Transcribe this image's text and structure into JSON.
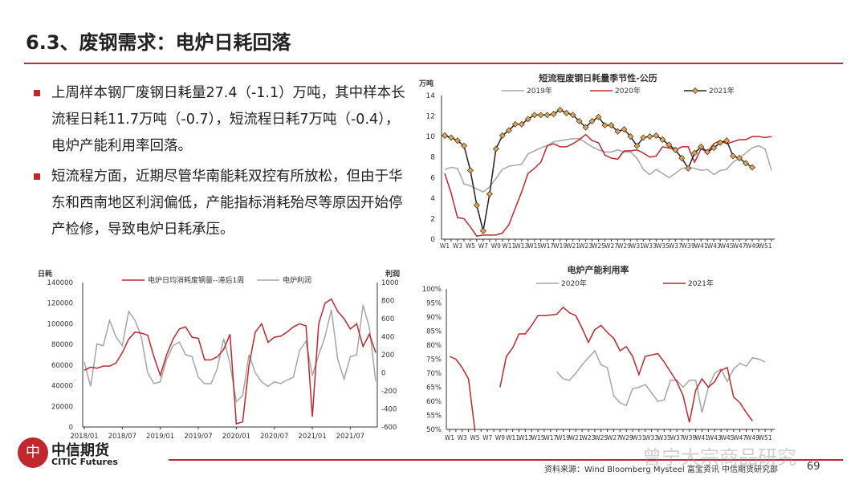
{
  "header": {
    "title": "6.3、废钢需求：电炉日耗回落"
  },
  "bullets": [
    "上周样本钢厂废钢日耗量27.4（-1.1）万吨，其中样本长流程日耗11.7万吨（-0.7），短流程日耗7万吨（-0.4），电炉产能利用率回落。",
    "短流程方面，近期尽管华南能耗双控有所放松，但由于华东和西南地区利润偏低，产能指标消耗殆尽等原因开始停产检修，导致电炉日耗承压。"
  ],
  "footer": {
    "logo_cn": "中信期货",
    "logo_en": "CITIC Futures",
    "source": "资料来源：Wind Bloomberg Mysteel 富宝资讯 中信期货研究部",
    "page": "69",
    "watermark": "曾宁大宗商品研究"
  },
  "colors": {
    "accent": "#c0282d",
    "gray": "#a6a6a6",
    "dark": "#222222",
    "marker": "#e3a14a"
  },
  "chart_data": [
    {
      "type": "line",
      "title": "短流程废钢日耗量季节性-公历",
      "ylabel": "万吨",
      "ylim": [
        0,
        14
      ],
      "yticks": [
        0,
        2,
        4,
        6,
        8,
        10,
        12,
        14
      ],
      "xticks": [
        "W1",
        "W3",
        "W5",
        "W7",
        "W9",
        "W11",
        "W13",
        "W15",
        "W17",
        "W19",
        "W21",
        "W23",
        "W25",
        "W27",
        "W29",
        "W31",
        "W33",
        "W35",
        "W37",
        "W39",
        "W41",
        "W43",
        "W45",
        "W47",
        "W49",
        "W51"
      ],
      "legend": "top",
      "series": [
        {
          "name": "2019年",
          "color": "#a6a6a6",
          "values": [
            6.8,
            7.0,
            6.9,
            5.4,
            5.2,
            4.9,
            4.6,
            5.1,
            5.9,
            6.8,
            7.1,
            7.2,
            7.3,
            8.3,
            8.6,
            8.9,
            9.1,
            9.5,
            9.6,
            9.7,
            9.8,
            9.8,
            9.4,
            9.0,
            8.7,
            8.5,
            8.5,
            8.7,
            8.5,
            8.5,
            7.9,
            6.8,
            6.3,
            6.8,
            6.4,
            6.0,
            6.4,
            6.9,
            7.0,
            6.9,
            6.7,
            6.8,
            6.3,
            6.7,
            6.8,
            7.5,
            7.9,
            8.4,
            8.9,
            9.1,
            8.8,
            6.7
          ]
        },
        {
          "name": "2020年",
          "color": "#c0282d",
          "values": [
            6.4,
            4.5,
            2.1,
            2.0,
            1.2,
            0.3,
            0.4,
            0.4,
            0.4,
            0.6,
            1.4,
            3.0,
            4.6,
            6.4,
            6.9,
            7.5,
            9.1,
            9.3,
            9.0,
            9.0,
            9.3,
            9.7,
            10.2,
            9.6,
            9.4,
            8.2,
            7.9,
            7.8,
            8.6,
            8.6,
            8.7,
            8.4,
            8.0,
            8.1,
            9.0,
            8.9,
            8.7,
            9.0,
            9.0,
            7.5,
            8.8,
            8.5,
            9.3,
            9.6,
            9.3,
            9.5,
            9.7,
            9.7,
            10.0,
            10.0,
            9.9,
            10.0
          ]
        },
        {
          "name": "2021年",
          "color": "#222222",
          "marker": true,
          "values": [
            10.1,
            9.9,
            9.6,
            9.1,
            6.7,
            3.3,
            0.8,
            4.4,
            8.8,
            10.1,
            10.6,
            11.2,
            11.2,
            11.7,
            12.1,
            12.1,
            12.1,
            12.2,
            12.6,
            12.3,
            12.1,
            11.5,
            10.9,
            11.5,
            11.9,
            11.1,
            11.1,
            10.5,
            10.7,
            10.0,
            9.1,
            9.9,
            10.0,
            10.1,
            9.7,
            9.2,
            8.7,
            7.9,
            6.9,
            8.4,
            9.0,
            8.5,
            8.9,
            9.4,
            9.6,
            8.1,
            7.9,
            7.4,
            7.0
          ]
        }
      ]
    },
    {
      "type": "line",
      "title": "",
      "ylabel": "日耗",
      "y2label": "利润",
      "ylim": [
        0,
        140000
      ],
      "yticks": [
        0,
        20000,
        40000,
        60000,
        80000,
        100000,
        120000,
        140000
      ],
      "y2lim": [
        -600,
        1000
      ],
      "y2ticks": [
        -600,
        -400,
        -200,
        0,
        200,
        400,
        600,
        800,
        1000
      ],
      "xticks": [
        "2018/01",
        "2018/07",
        "2019/01",
        "2019/07",
        "2020/01",
        "2020/07",
        "2021/01",
        "2021/07"
      ],
      "legend": "top",
      "x": [
        "2018-01",
        "2018-02",
        "2018-03",
        "2018-04",
        "2018-05",
        "2018-06",
        "2018-07",
        "2018-08",
        "2018-09",
        "2018-10",
        "2018-11",
        "2018-12",
        "2019-01",
        "2019-02",
        "2019-03",
        "2019-04",
        "2019-05",
        "2019-06",
        "2019-07",
        "2019-08",
        "2019-09",
        "2019-10",
        "2019-11",
        "2019-12",
        "2020-01",
        "2020-02",
        "2020-03",
        "2020-04",
        "2020-05",
        "2020-06",
        "2020-07",
        "2020-08",
        "2020-09",
        "2020-10",
        "2020-11",
        "2020-12",
        "2021-01",
        "2021-02",
        "2021-03",
        "2021-04",
        "2021-05",
        "2021-06",
        "2021-07",
        "2021-08",
        "2021-09",
        "2021-10",
        "2021-11"
      ],
      "series": [
        {
          "name": "电炉日均消耗废钢量--滞后1周",
          "color": "#c0282d",
          "axis": "left",
          "values": [
            55000,
            58000,
            57000,
            59000,
            59000,
            62000,
            72000,
            85000,
            92000,
            91000,
            89000,
            68000,
            50000,
            70000,
            85000,
            95000,
            97000,
            87000,
            86000,
            65000,
            65000,
            68000,
            75000,
            90000,
            3000,
            5000,
            60000,
            92000,
            100000,
            82000,
            87000,
            88000,
            92000,
            97000,
            100000,
            98000,
            10000,
            100000,
            120000,
            124000,
            112000,
            105000,
            95000,
            100000,
            78000,
            90000,
            72000
          ]
        },
        {
          "name": "电炉利润",
          "color": "#a6a6a6",
          "axis": "right",
          "values": [
            120,
            -150,
            320,
            300,
            580,
            400,
            300,
            680,
            580,
            400,
            0,
            -120,
            -100,
            150,
            300,
            340,
            200,
            180,
            -50,
            -120,
            -120,
            50,
            380,
            100,
            -320,
            -250,
            200,
            0,
            -100,
            -150,
            -100,
            -120,
            -80,
            -50,
            250,
            350,
            -30,
            200,
            400,
            700,
            150,
            -70,
            180,
            200,
            750,
            500,
            -90
          ]
        }
      ]
    },
    {
      "type": "line",
      "title": "电炉产能利用率",
      "ylim": [
        50,
        100
      ],
      "yticks": [
        "50%",
        "55%",
        "60%",
        "65%",
        "70%",
        "75%",
        "80%",
        "85%",
        "90%",
        "95%",
        "100%"
      ],
      "xticks": [
        "W1",
        "W3",
        "W5",
        "W7",
        "W9",
        "W11",
        "W13",
        "W15",
        "W17",
        "W19",
        "W21",
        "W23",
        "W25",
        "W27",
        "W29",
        "W31",
        "W33",
        "W35",
        "W37",
        "W39",
        "W41",
        "W43",
        "W45",
        "W47",
        "W49",
        "W51"
      ],
      "legend": "top",
      "series": [
        {
          "name": "2020年",
          "color": "#a6a6a6",
          "start_week": 18,
          "values": [
            70.5,
            68,
            67.5,
            70,
            73,
            75.5,
            78,
            73,
            72,
            62,
            59.5,
            58.5,
            64.5,
            65,
            66,
            63,
            60,
            60.5,
            67.5,
            67.5,
            65,
            67.5,
            67.5,
            56,
            65,
            70,
            71.5,
            67,
            71.5,
            73.5,
            72.5,
            75.5,
            75,
            74
          ]
        },
        {
          "name": "2021年",
          "color": "#c0282d",
          "start_week": 1,
          "values": [
            76,
            75,
            72,
            68,
            49,
            null,
            null,
            null,
            65,
            76,
            79,
            84,
            84,
            87,
            90.5,
            90.5,
            90.7,
            91,
            93.5,
            91.5,
            90.5,
            86,
            81,
            85.5,
            87,
            84.5,
            82.5,
            78,
            79.5,
            76,
            69.5,
            76,
            76.5,
            77,
            74,
            70.5,
            67,
            62,
            52.5,
            64,
            68,
            65,
            67,
            71,
            72,
            61.5,
            59.5,
            56,
            53
          ]
        }
      ]
    }
  ]
}
